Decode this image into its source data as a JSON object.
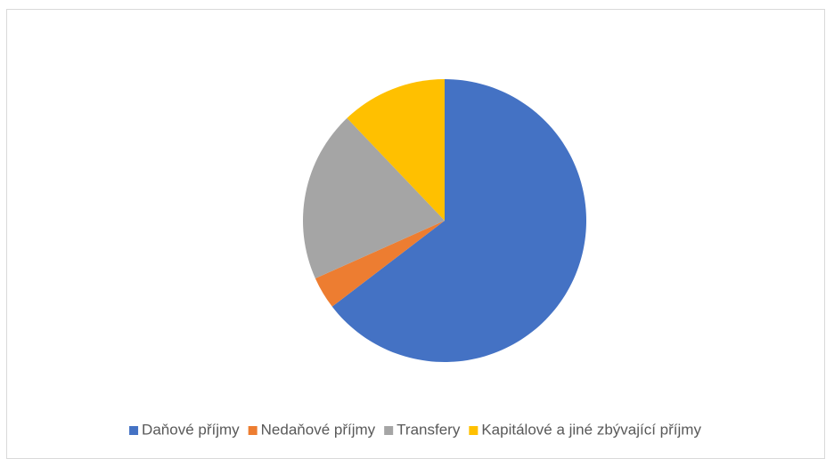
{
  "chart_data": {
    "type": "pie",
    "categories": [
      "Daňové příjmy",
      "Nedaňové příjmy",
      "Transfery",
      "Kapitálové a jiné zbývající příjmy"
    ],
    "values": [
      64.6,
      3.7,
      19.6,
      12.1
    ],
    "colors": [
      "#4472c4",
      "#ed7d31",
      "#a5a5a5",
      "#ffc000"
    ],
    "legend": "bottom"
  }
}
